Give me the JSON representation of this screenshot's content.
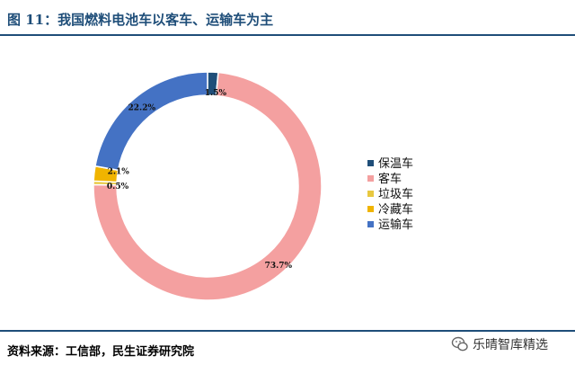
{
  "header": {
    "title": "图 11：我国燃料电池车以客车、运输车为主"
  },
  "chart_data": {
    "type": "pie",
    "donut": true,
    "title": "图 11：我国燃料电池车以客车、运输车为主",
    "categories": [
      "保温车",
      "客车",
      "垃圾车",
      "冷藏车",
      "运输车"
    ],
    "values": [
      1.5,
      73.7,
      0.5,
      2.1,
      22.2
    ],
    "labels": [
      "1.5%",
      "73.7%",
      "0.5%",
      "2.1%",
      "22.2%"
    ],
    "colors": [
      "#1f4e79",
      "#f4a0a0",
      "#e8c840",
      "#f0b400",
      "#4472c4"
    ],
    "legend_position": "right"
  },
  "footer": {
    "source": "资料来源：工信部，民生证券研究院",
    "watermark": "乐晴智库精选"
  }
}
